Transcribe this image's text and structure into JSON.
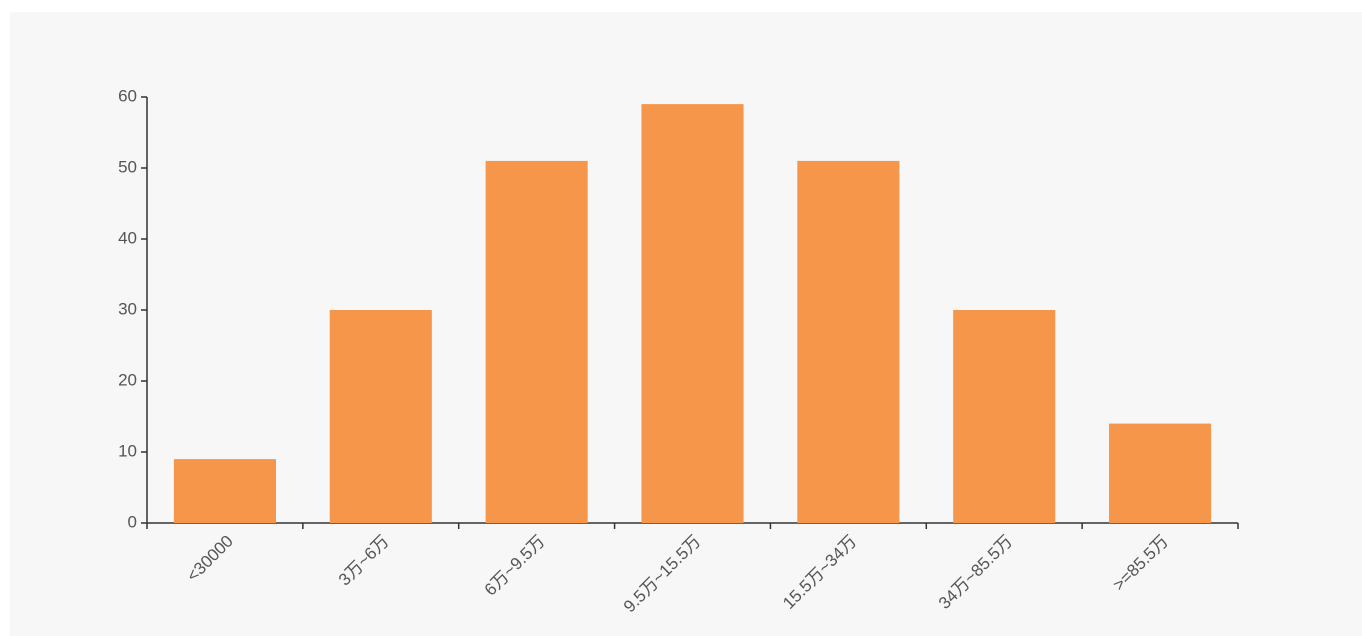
{
  "chart_data": {
    "type": "bar",
    "categories": [
      "<30000",
      "3万~6万",
      "6万~9.5万",
      "9.5万~15.5万",
      "15.5万~34万",
      "34万~85.5万",
      ">=85.5万"
    ],
    "values": [
      9,
      30,
      51,
      59,
      51,
      30,
      14
    ],
    "title": "",
    "xlabel": "",
    "ylabel": "",
    "ylim": [
      0,
      60
    ],
    "yticks": [
      0,
      10,
      20,
      30,
      40,
      50,
      60
    ],
    "grid": false,
    "legend": "none",
    "bar_color": "#f5964a",
    "background_color": "#f7f7f7"
  }
}
